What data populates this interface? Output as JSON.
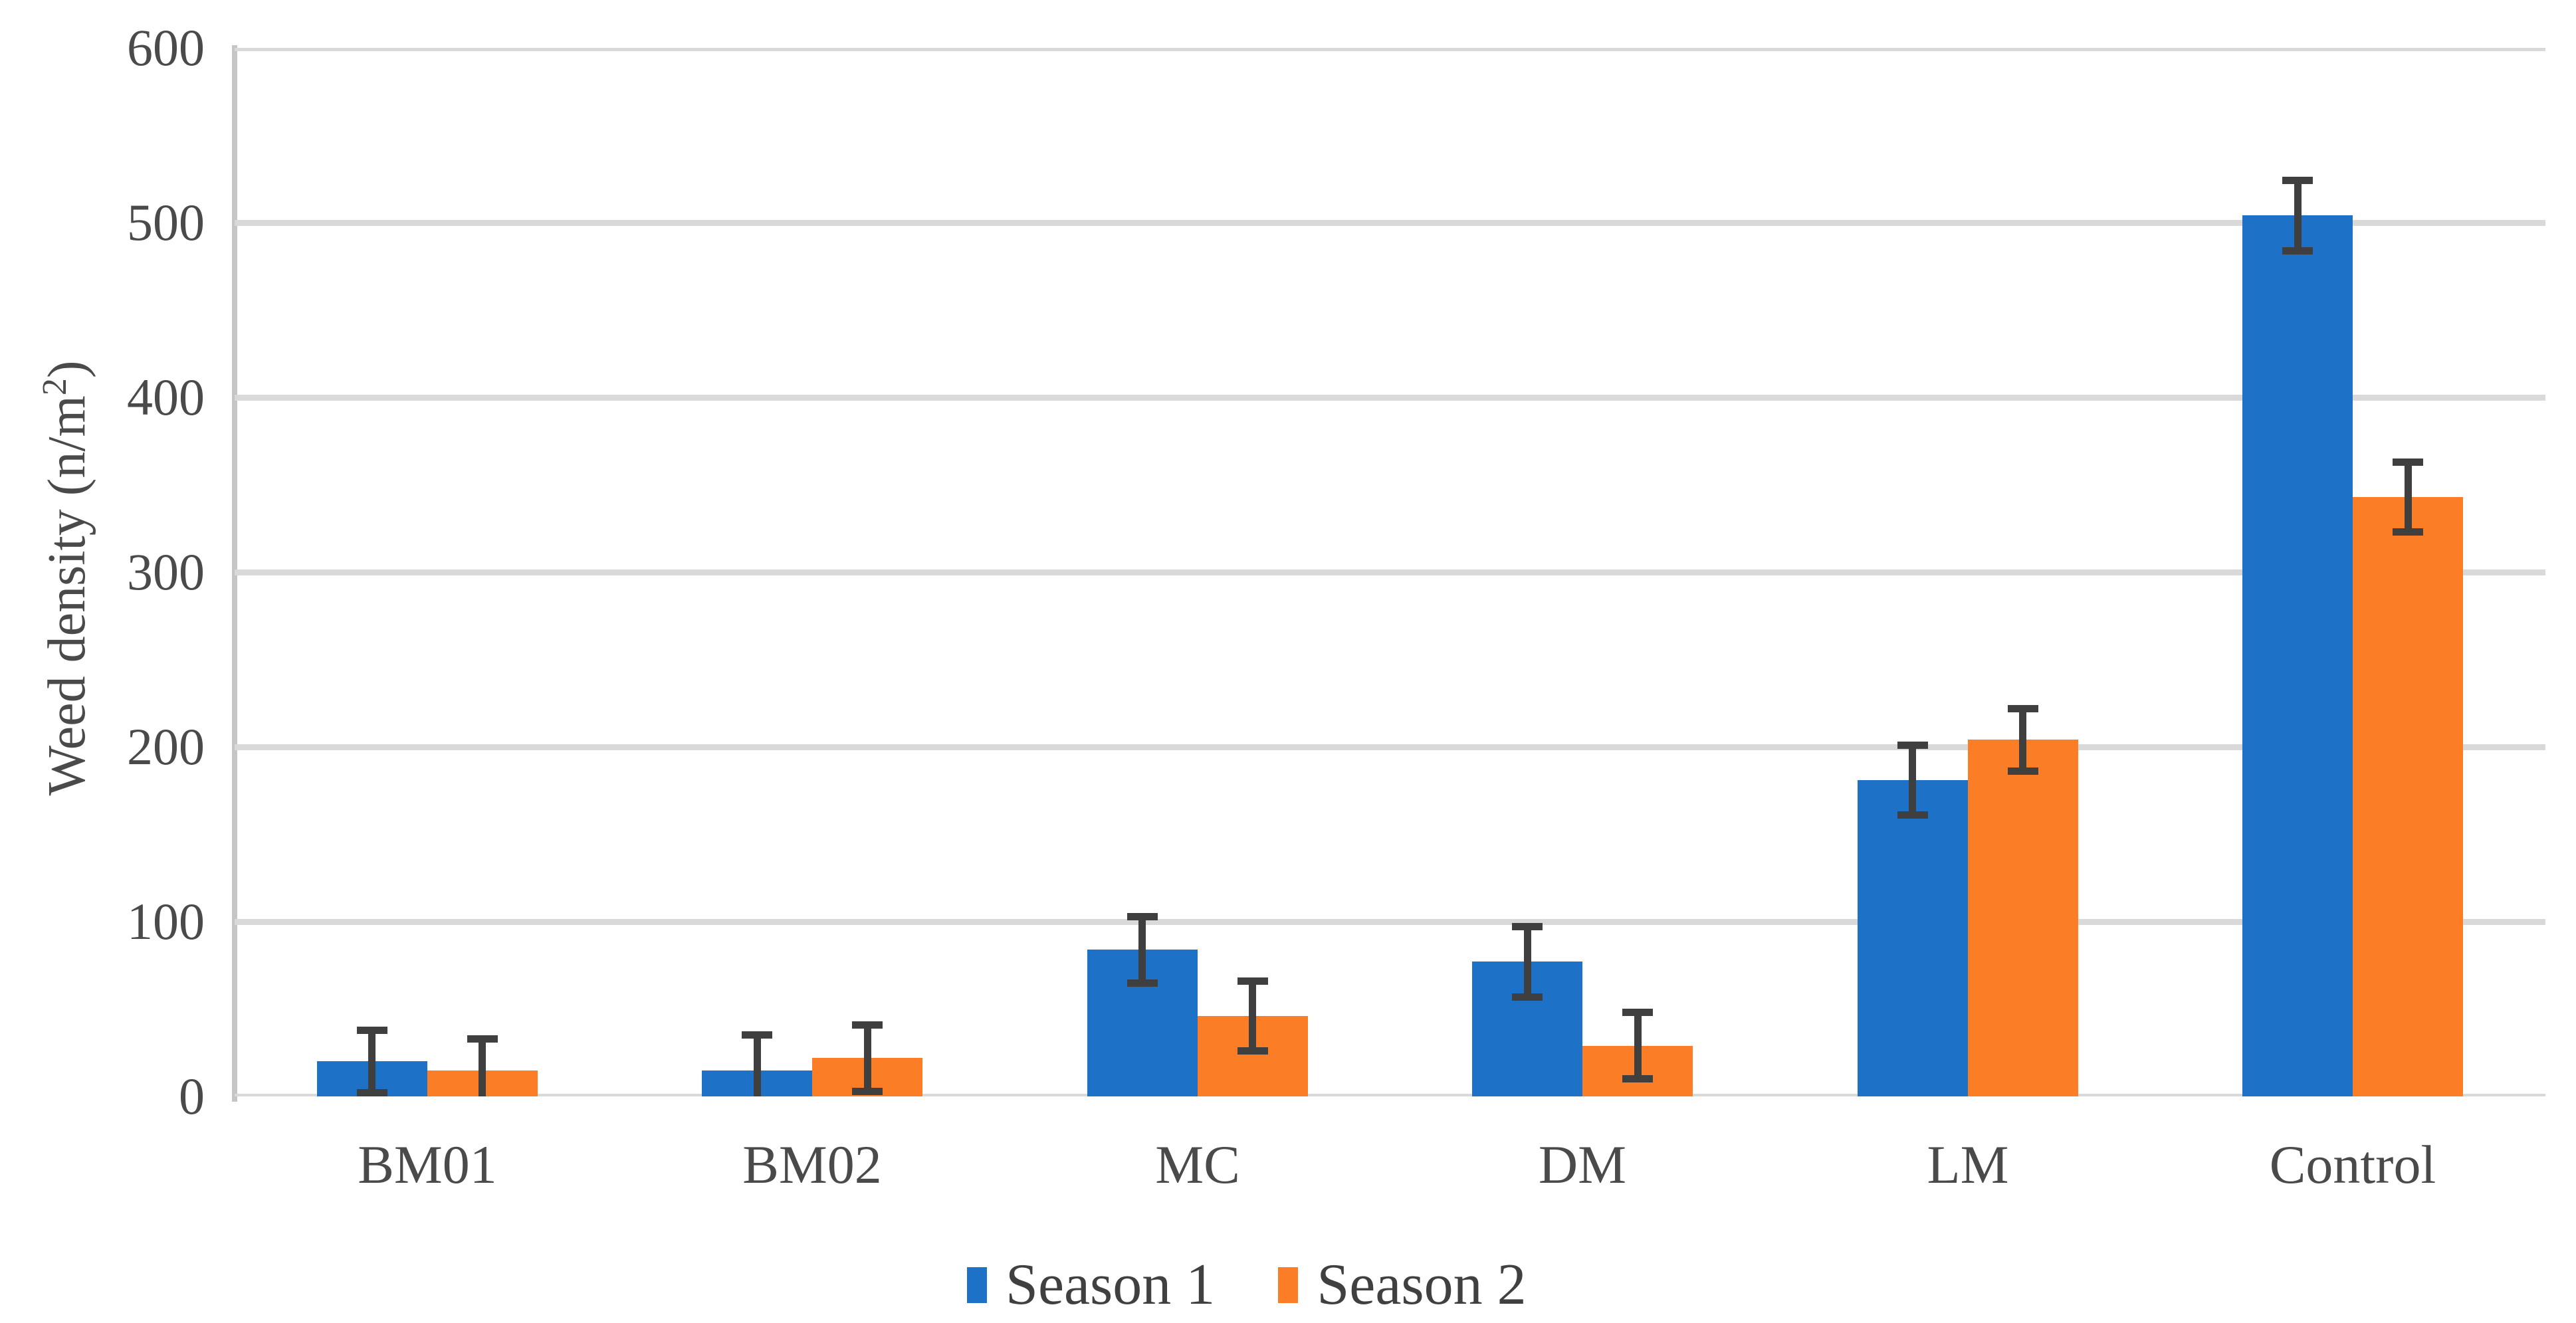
{
  "chart_data": {
    "type": "bar",
    "title": "",
    "ylabel_main": "Weed density  (n/m",
    "ylabel_sup": "2",
    "ylabel_close": ")",
    "categories": [
      "BM01",
      "BM02",
      "MC",
      "DM",
      "LM",
      "Control"
    ],
    "series": [
      {
        "name": "Season 1",
        "color": "#1d72c8",
        "values": [
          20,
          15,
          84,
          77,
          181,
          504
        ],
        "errors": [
          18,
          20,
          19,
          20,
          20,
          20
        ]
      },
      {
        "name": "Season 2",
        "color": "#fb7e26",
        "values": [
          15,
          22,
          46,
          29,
          204,
          343
        ],
        "errors": [
          18,
          19,
          20,
          19,
          18,
          20
        ]
      }
    ],
    "ylim": [
      0,
      600
    ],
    "ytick_step": 100,
    "yticks": [
      "0",
      "100",
      "200",
      "300",
      "400",
      "500",
      "600"
    ],
    "grid": true,
    "legend_position": "bottom",
    "error_bar_color": "#3f3f3f",
    "gridline_color": "#d9d9d9",
    "axis_line_color": "#c5c5c5"
  }
}
